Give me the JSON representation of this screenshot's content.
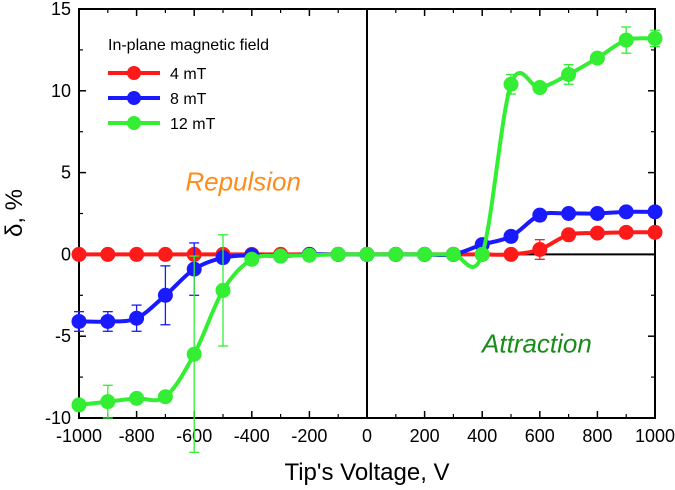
{
  "chart_data": {
    "type": "line",
    "title": "",
    "xlabel": "Tip's Voltage, V",
    "ylabel": "δ, %",
    "xlim": [
      -1000,
      1000
    ],
    "ylim": [
      -10,
      15
    ],
    "xticks": [
      -1000,
      -800,
      -600,
      -400,
      -200,
      0,
      200,
      400,
      600,
      800,
      1000
    ],
    "yticks": [
      -10,
      -5,
      0,
      5,
      10,
      15
    ],
    "grid": false,
    "legend_title": "In-plane magnetic field",
    "legend_position": "top-left",
    "x": [
      -1000,
      -900,
      -800,
      -700,
      -600,
      -500,
      -400,
      -300,
      -200,
      -100,
      0,
      100,
      200,
      300,
      400,
      500,
      600,
      700,
      800,
      900,
      1000
    ],
    "series": [
      {
        "name": "4 mT",
        "color": "#ff1a1a",
        "values": [
          0,
          0,
          0,
          0,
          0,
          0,
          0,
          0,
          0,
          0,
          0,
          0,
          0,
          0,
          0,
          0,
          0.3,
          1.2,
          1.3,
          1.35,
          1.35
        ],
        "errors": [
          0,
          0,
          0,
          0,
          0,
          0,
          0,
          0,
          0,
          0,
          0,
          0,
          0,
          0,
          0,
          0,
          0.6,
          0.2,
          0.2,
          0.2,
          0.3
        ]
      },
      {
        "name": "8 mT",
        "color": "#1a1aff",
        "values": [
          -4.1,
          -4.1,
          -3.9,
          -2.5,
          -0.9,
          -0.2,
          -0.05,
          -0.1,
          0,
          0,
          0,
          0,
          0,
          0,
          0.6,
          1.1,
          2.4,
          2.5,
          2.5,
          2.6,
          2.6
        ],
        "errors": [
          0.6,
          0.6,
          0.8,
          1.8,
          1.6,
          0.3,
          0.2,
          0.2,
          0,
          0,
          0,
          0,
          0,
          0,
          0.2,
          0.2,
          0.3,
          0.2,
          0.2,
          0.2,
          0.3
        ]
      },
      {
        "name": "12 mT",
        "color": "#33ee33",
        "values": [
          -9.2,
          -9.0,
          -8.8,
          -8.7,
          -6.1,
          -2.2,
          -0.3,
          -0.1,
          -0.05,
          0,
          0,
          0,
          0,
          0,
          0,
          10.4,
          10.2,
          11.0,
          12.0,
          13.1,
          13.2
        ],
        "errors": [
          0.3,
          1.0,
          0.3,
          0.3,
          6.0,
          3.4,
          0.3,
          0.2,
          0.1,
          0,
          0,
          0,
          0,
          0,
          0,
          0.6,
          0.3,
          0.6,
          0.3,
          0.8,
          0.5
        ]
      }
    ],
    "annotations": [
      {
        "text": "Repulsion",
        "x": -430,
        "y": 3.9,
        "color": "#ff8c1a"
      },
      {
        "text": "Attraction",
        "x": 590,
        "y": -6.0,
        "color": "#1a8c1a"
      }
    ]
  }
}
